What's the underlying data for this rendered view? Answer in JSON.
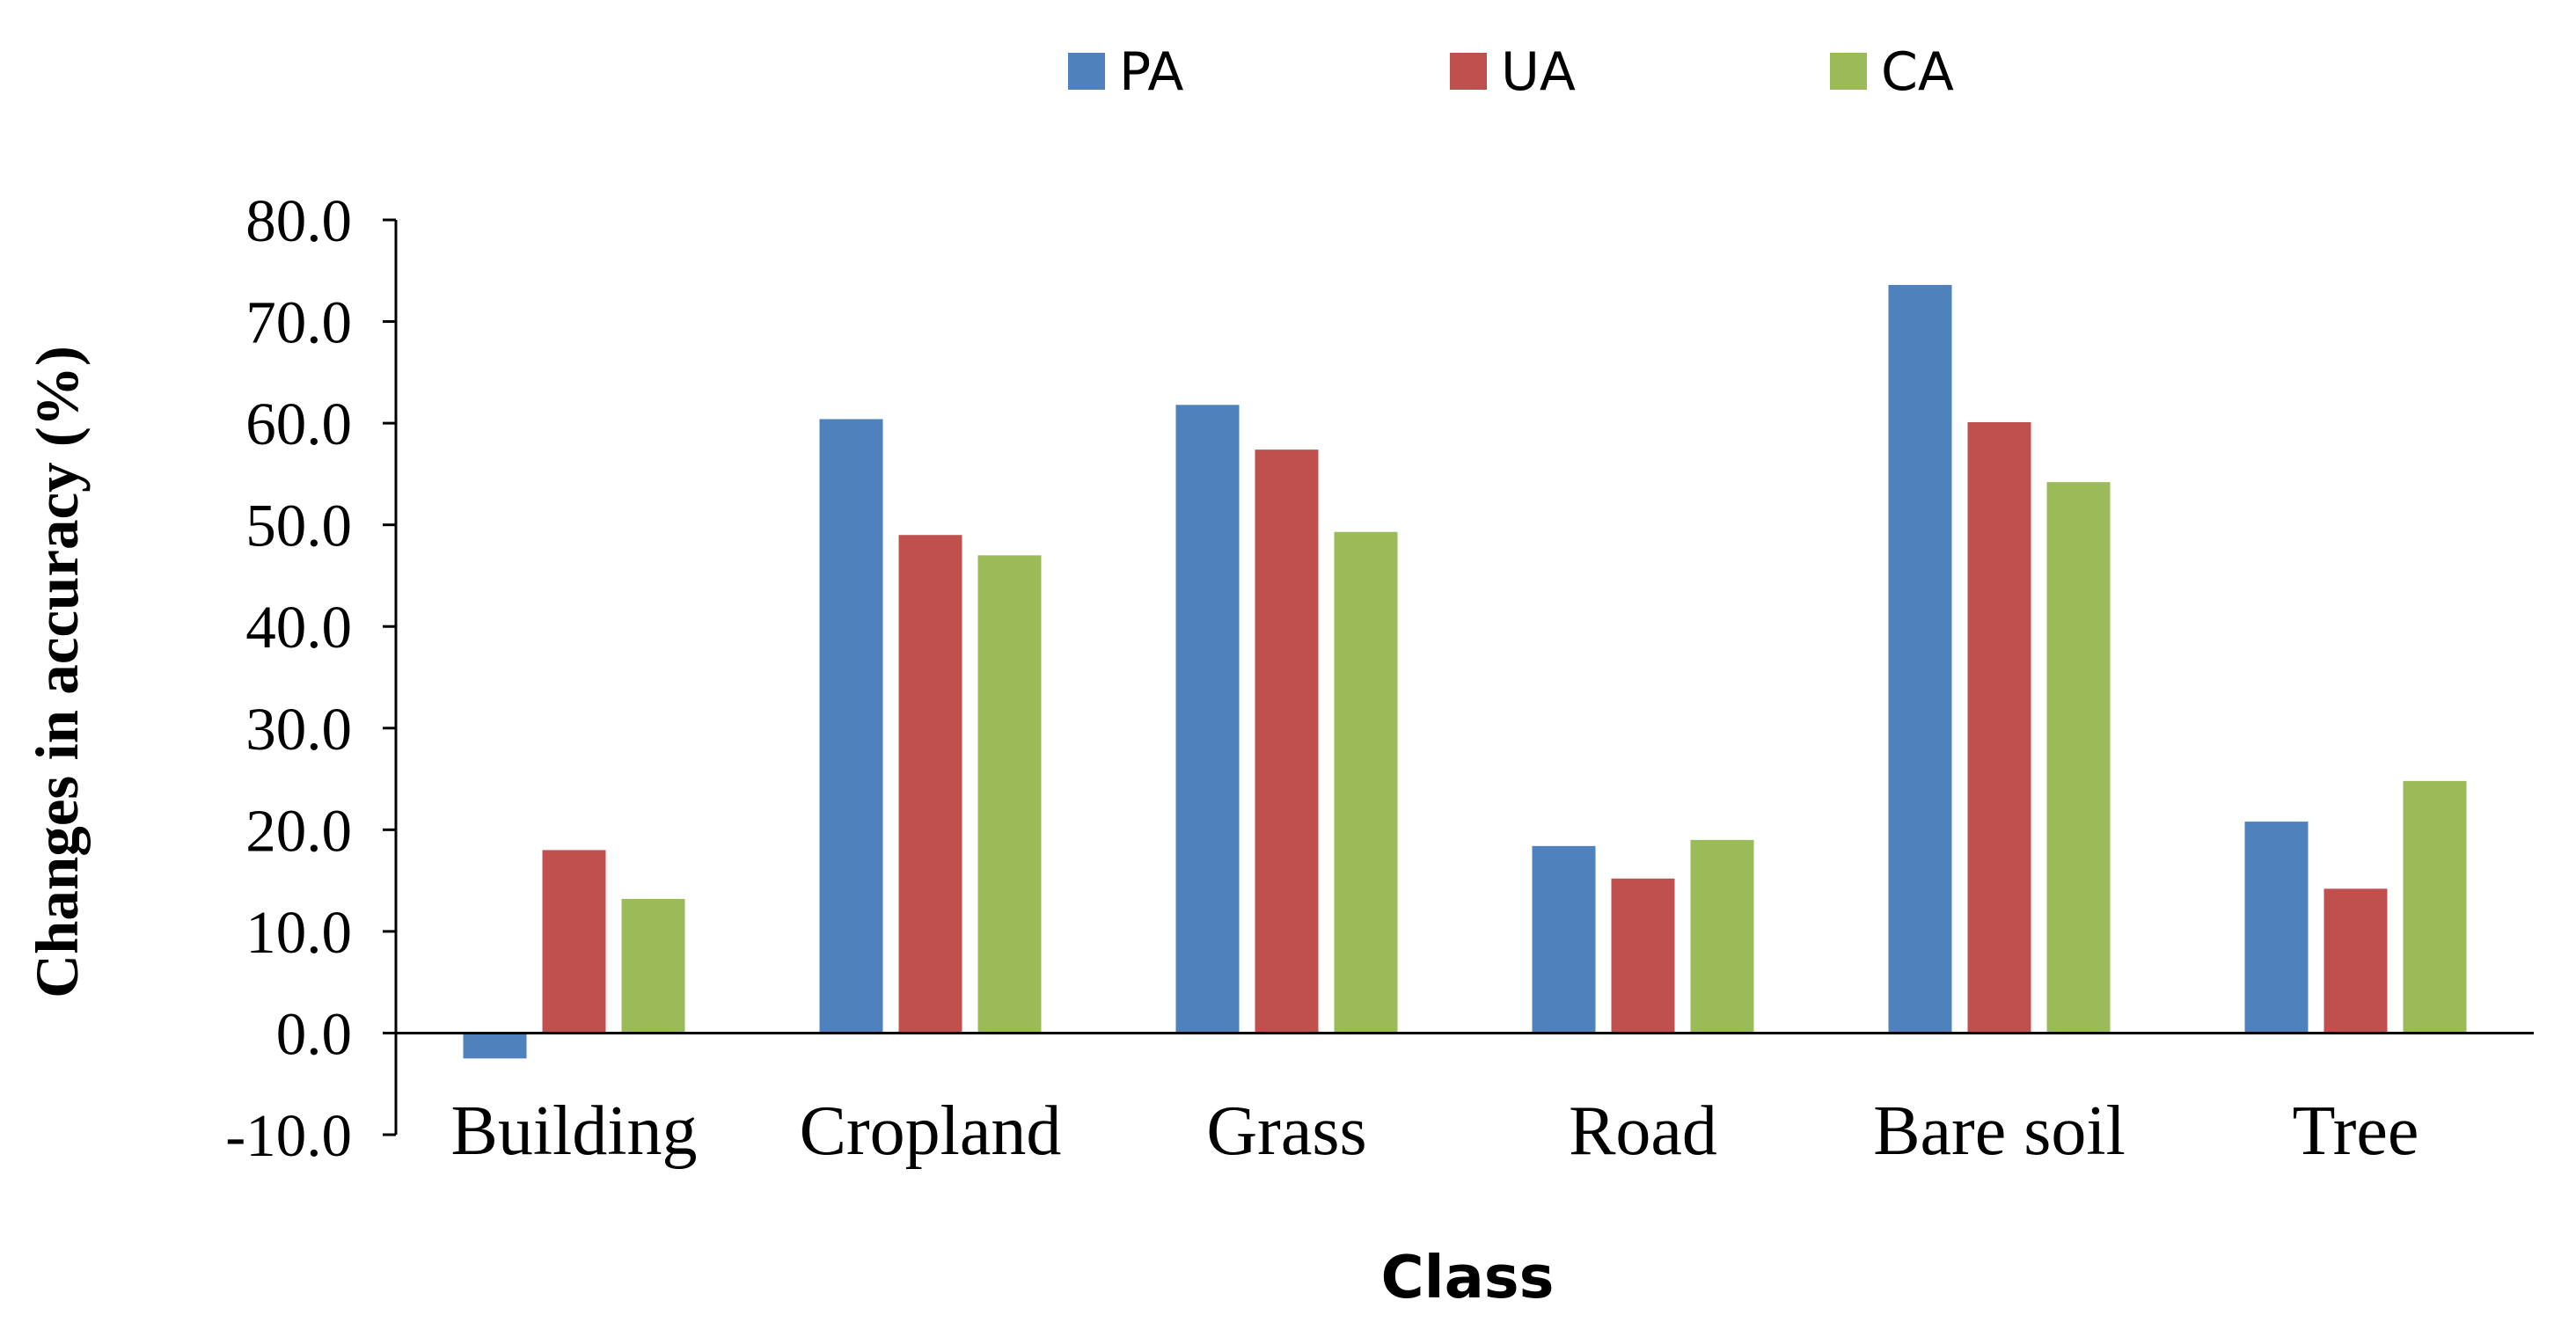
{
  "chart_data": {
    "type": "bar",
    "title": "",
    "xlabel": "Class",
    "ylabel": "Changes in accuracy (%)",
    "ylim": [
      -10,
      80
    ],
    "yticks": [
      -10,
      0,
      10,
      20,
      30,
      40,
      50,
      60,
      70,
      80
    ],
    "ytick_labels": [
      "-10.0",
      "0.0",
      "10.0",
      "20.0",
      "30.0",
      "40.0",
      "50.0",
      "60.0",
      "70.0",
      "80.0"
    ],
    "grid": false,
    "legend_position": "top-center",
    "categories": [
      "Building",
      "Cropland",
      "Grass",
      "Road",
      "Bare soil",
      "Tree"
    ],
    "series": [
      {
        "name": "PA",
        "color": "#4F81BD",
        "values": [
          -2.5,
          60.4,
          61.8,
          18.4,
          73.6,
          20.8
        ]
      },
      {
        "name": "UA",
        "color": "#C0504D",
        "values": [
          18.0,
          49.0,
          57.4,
          15.2,
          60.1,
          14.2
        ]
      },
      {
        "name": "CA",
        "color": "#9BBB59",
        "values": [
          13.2,
          47.0,
          49.3,
          19.0,
          54.2,
          24.8
        ]
      }
    ]
  }
}
